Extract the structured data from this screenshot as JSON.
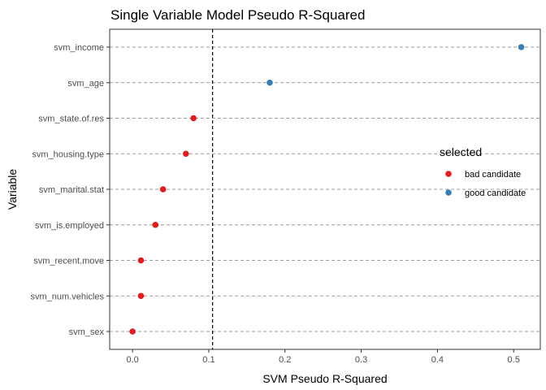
{
  "chart_data": {
    "type": "scatter",
    "title": "Single Variable Model Pseudo R-Squared",
    "xlabel": "SVM Pseudo R-Squared",
    "ylabel": "Variable",
    "xlim": [
      -0.03,
      0.535
    ],
    "xticks": [
      0.0,
      0.1,
      0.2,
      0.3,
      0.4,
      0.5
    ],
    "xtick_labels": [
      "0.0",
      "0.1",
      "0.2",
      "0.3",
      "0.4",
      "0.5"
    ],
    "reference_line": {
      "x": 0.105,
      "style": "dashed"
    },
    "categories": [
      "svm_income",
      "svm_age",
      "svm_state.of.res",
      "svm_housing.type",
      "svm_marital.stat",
      "svm_is.employed",
      "svm_recent.move",
      "svm_num.vehicles",
      "svm_sex"
    ],
    "values": [
      0.51,
      0.18,
      0.08,
      0.07,
      0.04,
      0.03,
      0.011,
      0.011,
      0.0
    ],
    "groups": [
      "good candidate",
      "good candidate",
      "bad candidate",
      "bad candidate",
      "bad candidate",
      "bad candidate",
      "bad candidate",
      "bad candidate",
      "bad candidate"
    ],
    "legend": {
      "title": "selected",
      "placement": "right",
      "entries": [
        {
          "label": "bad candidate",
          "color": "#e41a1c"
        },
        {
          "label": "good candidate",
          "color": "#377eb8"
        }
      ]
    },
    "grid": "horizontal dashed"
  }
}
